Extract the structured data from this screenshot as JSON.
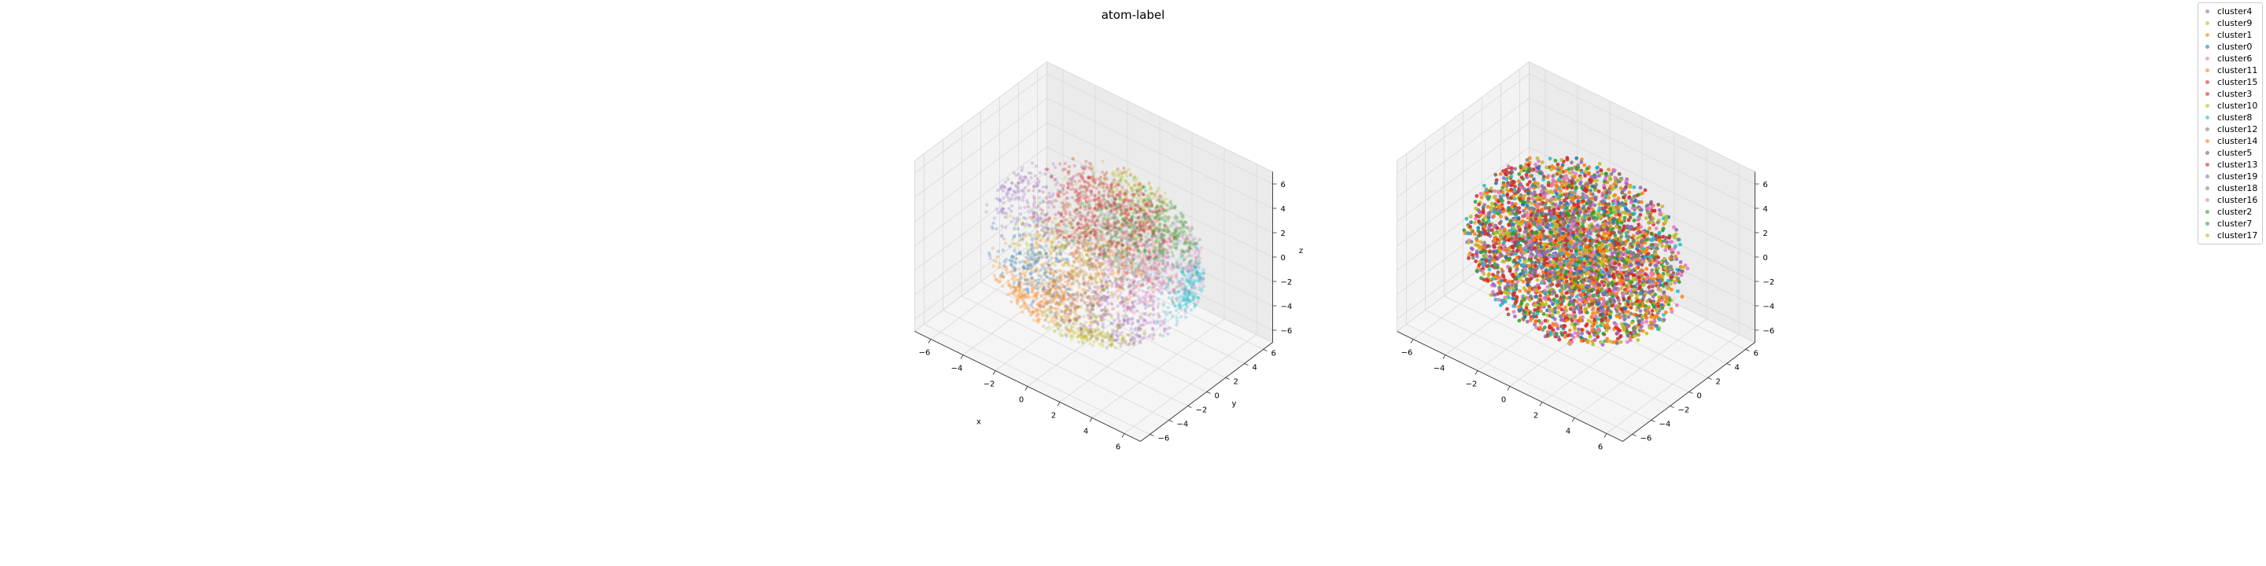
{
  "figure": {
    "title": "atom-label"
  },
  "chart_data": [
    {
      "type": "scatter",
      "subtype": "3d",
      "title": "",
      "xlabel": "x",
      "ylabel": "y",
      "zlabel": "z",
      "xlim": [
        -7,
        7
      ],
      "ylim": [
        -7,
        7
      ],
      "zlim": [
        -7,
        7
      ],
      "xticks": [
        -6,
        -4,
        -2,
        0,
        2,
        4,
        6
      ],
      "yticks": [
        -6,
        -4,
        -2,
        0,
        2,
        4,
        6
      ],
      "zticks": [
        -6,
        -4,
        -2,
        0,
        2,
        4,
        6
      ],
      "grid": true,
      "point_alpha": 0.25,
      "point_cloud": {
        "shape": "sphere",
        "radius": 6.0,
        "points_per_series": 200,
        "grouping": "clustered"
      }
    },
    {
      "type": "scatter",
      "subtype": "3d",
      "title": "",
      "xlabel": "",
      "ylabel": "",
      "zlabel": "",
      "xlim": [
        -7,
        7
      ],
      "ylim": [
        -7,
        7
      ],
      "zlim": [
        -7,
        7
      ],
      "xticks": [
        -6,
        -4,
        -2,
        0,
        2,
        4,
        6
      ],
      "yticks": [
        -6,
        -4,
        -2,
        0,
        2,
        4,
        6
      ],
      "zticks": [
        -6,
        -4,
        -2,
        0,
        2,
        4,
        6
      ],
      "grid": true,
      "point_alpha": 0.85,
      "point_cloud": {
        "shape": "sphere",
        "radius": 6.0,
        "points_per_series": 200,
        "grouping": "mixed"
      }
    }
  ],
  "legend": {
    "placement": "top-right",
    "series": [
      {
        "name": "cluster4",
        "color": "#9467bd",
        "center": [
          -4.5,
          0.0,
          1.5
        ]
      },
      {
        "name": "cluster9",
        "color": "#bcbd22",
        "center": [
          -2.5,
          1.0,
          -1.5
        ]
      },
      {
        "name": "cluster1",
        "color": "#ff7f0e",
        "center": [
          -2.0,
          0.0,
          -4.0
        ]
      },
      {
        "name": "cluster0",
        "color": "#1f77b4",
        "center": [
          -4.0,
          0.0,
          -3.5
        ]
      },
      {
        "name": "cluster6",
        "color": "#e377c2",
        "center": [
          3.5,
          2.5,
          0.5
        ]
      },
      {
        "name": "cluster11",
        "color": "#ff7f0e",
        "center": [
          -2.5,
          -3.0,
          -4.0
        ]
      },
      {
        "name": "cluster15",
        "color": "#d62728",
        "center": [
          1.0,
          -3.0,
          5.0
        ]
      },
      {
        "name": "cluster3",
        "color": "#d62728",
        "center": [
          0.0,
          0.0,
          5.0
        ]
      },
      {
        "name": "cluster10",
        "color": "#bcbd22",
        "center": [
          2.0,
          -4.0,
          -4.0
        ]
      },
      {
        "name": "cluster8",
        "color": "#17becf",
        "center": [
          5.5,
          2.0,
          -1.0
        ]
      },
      {
        "name": "cluster12",
        "color": "#7f7f7f",
        "center": [
          -1.0,
          4.0,
          -1.0
        ]
      },
      {
        "name": "cluster14",
        "color": "#ff7f0e",
        "center": [
          0.0,
          3.0,
          -3.0
        ]
      },
      {
        "name": "cluster5",
        "color": "#8c564b",
        "center": [
          -1.0,
          0.0,
          -5.0
        ]
      },
      {
        "name": "cluster13",
        "color": "#d62728",
        "center": [
          3.0,
          0.0,
          4.5
        ]
      },
      {
        "name": "cluster19",
        "color": "#9467bd",
        "center": [
          3.0,
          -2.0,
          -2.5
        ]
      },
      {
        "name": "cluster18",
        "color": "#7f7f7f",
        "center": [
          1.5,
          1.0,
          -1.0
        ]
      },
      {
        "name": "cluster16",
        "color": "#e377c2",
        "center": [
          4.0,
          -2.0,
          1.0
        ]
      },
      {
        "name": "cluster2",
        "color": "#2ca02c",
        "center": [
          2.0,
          0.0,
          3.0
        ]
      },
      {
        "name": "cluster7",
        "color": "#2ca02c",
        "center": [
          4.0,
          2.0,
          3.5
        ]
      },
      {
        "name": "cluster17",
        "color": "#bcbd22",
        "center": [
          0.0,
          5.0,
          2.0
        ]
      }
    ]
  }
}
